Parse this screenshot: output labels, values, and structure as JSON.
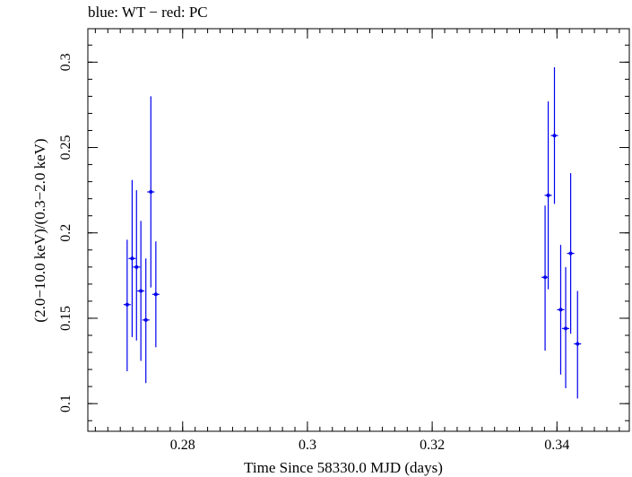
{
  "chart_data": {
    "type": "scatter",
    "title": "blue: WT − red: PC",
    "xlabel": "Time Since 58330.0 MJD (days)",
    "ylabel": "(2.0−10.0 keV)/(0.3−2.0 keV)",
    "xlim": [
      0.2648,
      0.3516
    ],
    "ylim": [
      0.0838,
      0.3196
    ],
    "x_ticks": [
      0.28,
      0.3,
      0.32,
      0.34
    ],
    "x_tick_labels": [
      "0.28",
      "0.3",
      "0.32",
      "0.34"
    ],
    "y_ticks": [
      0.1,
      0.15,
      0.2,
      0.25,
      0.3
    ],
    "y_tick_labels": [
      "0.1",
      "0.15",
      "0.2",
      "0.25",
      "0.3"
    ],
    "grid": false,
    "series": [
      {
        "color": "#0000ee",
        "points": [
          {
            "x": 0.2711,
            "y": 0.158,
            "ylo": 0.119,
            "yhi": 0.196
          },
          {
            "x": 0.2719,
            "y": 0.185,
            "ylo": 0.139,
            "yhi": 0.231
          },
          {
            "x": 0.2726,
            "y": 0.18,
            "ylo": 0.137,
            "yhi": 0.225
          },
          {
            "x": 0.2733,
            "y": 0.166,
            "ylo": 0.125,
            "yhi": 0.207
          },
          {
            "x": 0.2741,
            "y": 0.149,
            "ylo": 0.112,
            "yhi": 0.185
          },
          {
            "x": 0.2749,
            "y": 0.224,
            "ylo": 0.168,
            "yhi": 0.28
          },
          {
            "x": 0.2757,
            "y": 0.164,
            "ylo": 0.133,
            "yhi": 0.195
          },
          {
            "x": 0.3381,
            "y": 0.174,
            "ylo": 0.131,
            "yhi": 0.216
          },
          {
            "x": 0.3386,
            "y": 0.222,
            "ylo": 0.167,
            "yhi": 0.277
          },
          {
            "x": 0.3396,
            "y": 0.257,
            "ylo": 0.217,
            "yhi": 0.297
          },
          {
            "x": 0.3406,
            "y": 0.155,
            "ylo": 0.117,
            "yhi": 0.193
          },
          {
            "x": 0.3414,
            "y": 0.144,
            "ylo": 0.109,
            "yhi": 0.18
          },
          {
            "x": 0.3422,
            "y": 0.188,
            "ylo": 0.141,
            "yhi": 0.235
          },
          {
            "x": 0.3433,
            "y": 0.135,
            "ylo": 0.103,
            "yhi": 0.166
          }
        ]
      }
    ]
  }
}
